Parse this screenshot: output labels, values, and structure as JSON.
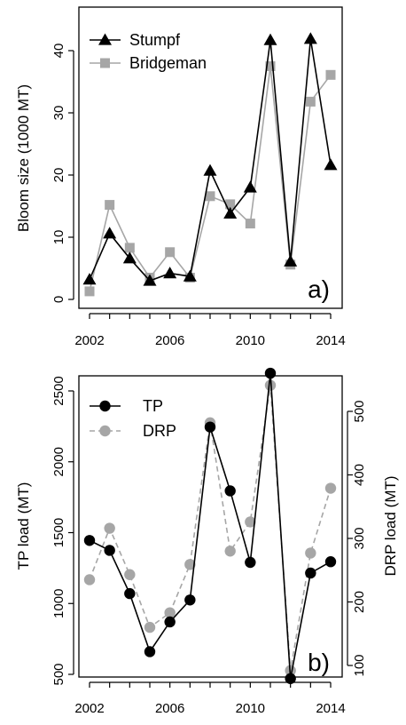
{
  "chart_data": [
    {
      "type": "line",
      "panel_label": "a)",
      "xlabel": "",
      "ylabel": "Bloom size (1000 MT)",
      "xlim": [
        2002,
        2014
      ],
      "ylim": [
        0,
        43
      ],
      "xticks": [
        2002,
        2006,
        2010,
        2014
      ],
      "yticks": [
        0,
        10,
        20,
        30,
        40
      ],
      "x": [
        2002,
        2003,
        2004,
        2005,
        2006,
        2007,
        2008,
        2009,
        2010,
        2011,
        2012,
        2013,
        2014
      ],
      "legend_position": "top-left",
      "series": [
        {
          "name": "Stumpf",
          "color": "#000000",
          "marker": "triangle",
          "line": "solid",
          "values": [
            3.2,
            10.6,
            6.6,
            3.0,
            4.2,
            3.7,
            20.7,
            13.8,
            18.0,
            41.7,
            6.1,
            41.9,
            21.6
          ]
        },
        {
          "name": "Bridgeman",
          "color": "#a6a6a6",
          "marker": "square",
          "line": "solid",
          "values": [
            1.3,
            15.2,
            8.3,
            3.5,
            7.6,
            3.5,
            16.6,
            15.3,
            12.2,
            37.5,
            5.6,
            31.8,
            36.1
          ]
        }
      ]
    },
    {
      "type": "line",
      "panel_label": "b)",
      "xlabel": "",
      "ylabel": "TP load (MT)",
      "y2label": "DRP load (MT)",
      "xlim": [
        2002,
        2014
      ],
      "ylim": [
        500,
        2650
      ],
      "y2lim": [
        100,
        550
      ],
      "xticks": [
        2002,
        2006,
        2010,
        2014
      ],
      "yticks": [
        500,
        1000,
        1500,
        2000,
        2500
      ],
      "y2ticks": [
        100,
        200,
        300,
        400,
        500
      ],
      "x": [
        2002,
        2003,
        2004,
        2005,
        2006,
        2007,
        2008,
        2009,
        2010,
        2011,
        2012,
        2013,
        2014
      ],
      "legend_position": "top-left",
      "series": [
        {
          "name": "TP",
          "axis": "left",
          "color": "#000000",
          "marker": "circle",
          "line": "solid",
          "values": [
            1445,
            1375,
            1070,
            660,
            870,
            1025,
            2245,
            1795,
            1290,
            2625,
            470,
            1215,
            1295
          ]
        },
        {
          "name": "DRP",
          "axis": "right",
          "color": "#a6a6a6",
          "marker": "circle",
          "line": "dashed",
          "values": [
            235,
            316,
            243,
            160,
            183,
            259,
            482,
            280,
            326,
            541,
            92,
            277,
            379
          ]
        }
      ]
    }
  ]
}
